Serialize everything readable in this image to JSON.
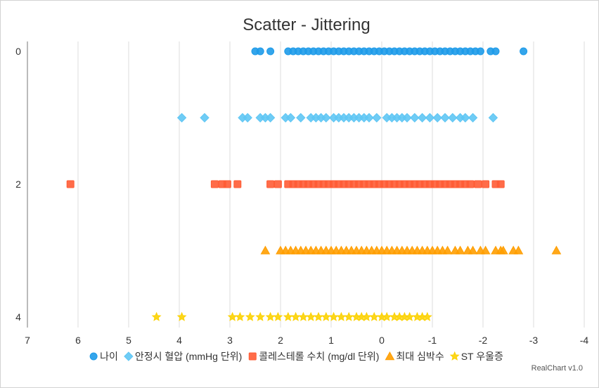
{
  "chart_data": {
    "type": "scatter",
    "title": "Scatter - Jittering",
    "xlabel": "",
    "ylabel": "",
    "xlim": [
      7,
      -4
    ],
    "ylim": [
      0,
      4
    ],
    "x_ticks": [
      "7",
      "6",
      "5",
      "4",
      "3",
      "2",
      "1",
      "0",
      "-1",
      "-2",
      "-3",
      "-4"
    ],
    "y_ticks": [
      "0",
      "2",
      "4"
    ],
    "grid": "vertical",
    "legend_position": "bottom",
    "series": [
      {
        "name": "나이",
        "category": 0,
        "marker": "circle",
        "color": "#1e9be9",
        "x": [
          2.5,
          2.4,
          2.2,
          1.85,
          1.75,
          1.65,
          1.55,
          1.45,
          1.35,
          1.25,
          1.15,
          1.05,
          0.95,
          0.85,
          0.75,
          0.65,
          0.55,
          0.45,
          0.35,
          0.25,
          0.15,
          0.05,
          -0.05,
          -0.15,
          -0.25,
          -0.35,
          -0.45,
          -0.55,
          -0.65,
          -0.75,
          -0.85,
          -0.95,
          -1.05,
          -1.15,
          -1.25,
          -1.35,
          -1.45,
          -1.55,
          -1.65,
          -1.75,
          -1.85,
          -1.95,
          -2.15,
          -2.25,
          -2.8
        ]
      },
      {
        "name": "안정시 혈압 (mmHg 단위)",
        "category": 1,
        "marker": "diamond",
        "color": "#5fc6f4",
        "x": [
          3.95,
          3.5,
          2.75,
          2.65,
          2.4,
          2.3,
          2.2,
          1.9,
          1.8,
          1.6,
          1.4,
          1.3,
          1.2,
          1.1,
          0.95,
          0.85,
          0.75,
          0.65,
          0.55,
          0.45,
          0.35,
          0.25,
          0.1,
          -0.1,
          -0.2,
          -0.3,
          -0.4,
          -0.5,
          -0.65,
          -0.8,
          -0.95,
          -1.1,
          -1.25,
          -1.4,
          -1.55,
          -1.65,
          -1.8,
          -2.2
        ]
      },
      {
        "name": "콜레스테롤 수치 (mg/dl 단위)",
        "category": 2,
        "marker": "square",
        "color": "#ff5c35",
        "x": [
          6.15,
          3.3,
          3.15,
          3.05,
          2.85,
          2.2,
          2.05,
          1.85,
          1.75,
          1.65,
          1.55,
          1.45,
          1.35,
          1.25,
          1.15,
          1.05,
          0.95,
          0.85,
          0.75,
          0.65,
          0.55,
          0.45,
          0.35,
          0.25,
          0.15,
          0.05,
          -0.05,
          -0.15,
          -0.25,
          -0.35,
          -0.45,
          -0.55,
          -0.65,
          -0.75,
          -0.85,
          -0.95,
          -1.05,
          -1.15,
          -1.25,
          -1.35,
          -1.45,
          -1.55,
          -1.65,
          -1.75,
          -1.9,
          -2.05,
          -2.25,
          -2.35
        ]
      },
      {
        "name": "최대 심박수",
        "category": 3,
        "marker": "triangle",
        "color": "#ff9e01",
        "x": [
          2.3,
          2.0,
          1.9,
          1.8,
          1.7,
          1.6,
          1.5,
          1.4,
          1.3,
          1.2,
          1.1,
          1.0,
          0.9,
          0.8,
          0.7,
          0.6,
          0.5,
          0.4,
          0.3,
          0.2,
          0.1,
          0.0,
          -0.1,
          -0.2,
          -0.3,
          -0.4,
          -0.5,
          -0.6,
          -0.7,
          -0.8,
          -0.9,
          -1.0,
          -1.1,
          -1.2,
          -1.3,
          -1.45,
          -1.55,
          -1.7,
          -1.8,
          -1.95,
          -2.05,
          -2.25,
          -2.35,
          -2.4,
          -2.6,
          -2.7,
          -3.45
        ]
      },
      {
        "name": "ST 우울증",
        "category": 4,
        "marker": "star",
        "color": "#fcd202",
        "x": [
          4.45,
          3.95,
          2.95,
          2.8,
          2.6,
          2.4,
          2.2,
          2.05,
          1.85,
          1.7,
          1.55,
          1.4,
          1.25,
          1.1,
          0.95,
          0.8,
          0.65,
          0.5,
          0.4,
          0.3,
          0.15,
          0.0,
          -0.1,
          -0.25,
          -0.35,
          -0.45,
          -0.55,
          -0.7,
          -0.8,
          -0.9
        ]
      }
    ],
    "credit": "RealChart v1.0"
  }
}
